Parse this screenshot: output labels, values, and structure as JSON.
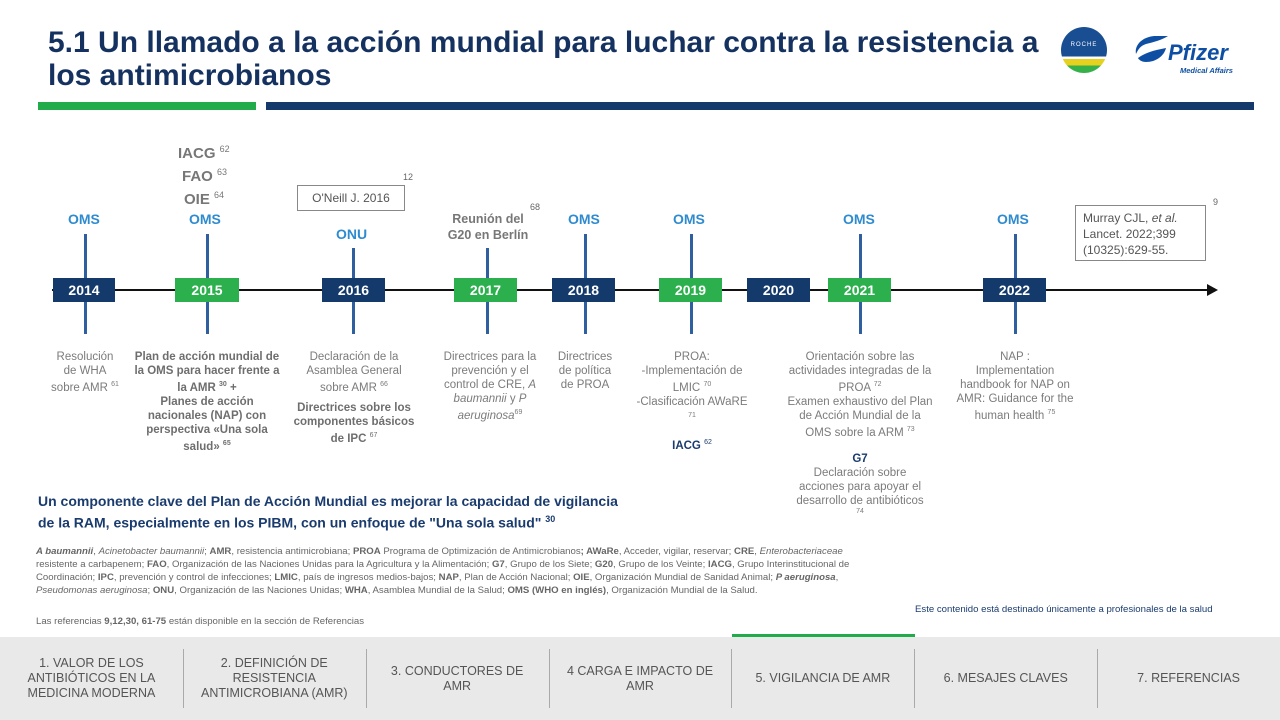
{
  "title": {
    "line1": "5.1 Un llamado a la acción mundial para luchar contra la resistencia a",
    "line2": "los antimicrobianos"
  },
  "logos": {
    "partner_text": "ROCHE",
    "pfizer_brand": "Pfizer",
    "pfizer_sub": "Medical Affairs"
  },
  "colors": {
    "navy": "#143a6c",
    "green": "#2bb04d",
    "title": "#14315f",
    "org_blue": "#2e8bd0"
  },
  "timeline": {
    "years": {
      "y2014": "2014",
      "y2015": "2015",
      "y2016": "2016",
      "y2017": "2017",
      "y2018": "2018",
      "y2019": "2019",
      "y2020": "2020",
      "y2021": "2021",
      "y2022": "2022"
    },
    "above": {
      "oms": "OMS",
      "onu": "ONU",
      "iacg": "IACG",
      "iacg_ref": "62",
      "fao": "FAO",
      "fao_ref": "63",
      "oie": "OIE",
      "oie_ref": "64",
      "oneill": "O'Neill J. 2016",
      "oneill_ref": "12",
      "g20_line1": "Reunión del",
      "g20_line2": "G20 en Berlín",
      "g20_ref": "68",
      "murray_author": "Murray CJL,",
      "murray_etal": "et al.",
      "murray_line2": "Lancet. 2022;399",
      "murray_line3": "(10325):629-55.",
      "murray_ref": "9"
    },
    "below": {
      "d2014": {
        "l1": "Resolución",
        "l2": "de WHA",
        "l3": "sobre AMR",
        "ref": "61"
      },
      "d2015": {
        "l1": "Plan de acción mundial de",
        "l2": "la OMS para hacer frente a",
        "l3": "la AMR",
        "ref1": "30",
        "l3b": "+",
        "l4": "Planes de acción",
        "l5": "nacionales (NAP) con",
        "l6": "perspectiva «Una sola",
        "l7": "salud»",
        "ref2": "65"
      },
      "d2016": {
        "l1": "Declaración de la",
        "l2": "Asamblea General",
        "l3": "sobre AMR",
        "ref1": "66",
        "l4": "Directrices sobre los",
        "l5": "componentes básicos",
        "l6": "de IPC",
        "ref2": "67"
      },
      "d2017": {
        "l1": "Directrices para la",
        "l2": "prevención y el",
        "l3": "control de  CRE,",
        "l3i": "A",
        "l4": "baumannii",
        "l4b": "y",
        "l4c": "P",
        "l5": "aeruginosa",
        "ref": "69"
      },
      "d2018": {
        "l1": "Directrices",
        "l2": "de política",
        "l3": "de PROA"
      },
      "d2019": {
        "l1": "PROA:",
        "l2": "-Implementación de",
        "l3": "LMIC",
        "ref1": "70",
        "l4": "-Clasificación AWaRE",
        "ref2": "71",
        "iacg": "IACG",
        "iacg_ref": "62"
      },
      "d2021": {
        "l1": "Orientación sobre las",
        "l2": "actividades integradas de la",
        "l3": "PROA",
        "ref1": "72",
        "l4": "Examen exhaustivo del Plan",
        "l5": "de Acción Mundial de la",
        "l6": "OMS  sobre la ARM",
        "ref2": "73",
        "g7": "G7",
        "l7": "Declaración sobre",
        "l8": "acciones para apoyar el",
        "l9": "desarrollo de antibióticos",
        "ref3": "74"
      },
      "d2022": {
        "l1": "NAP :",
        "l2": "Implementation",
        "l3": "handbook for NAP on",
        "l4": "AMR:  Guidance for the",
        "l5": "human health",
        "ref": "75"
      }
    }
  },
  "key_message": {
    "line1": "Un componente clave del Plan de Acción Mundial es mejorar la capacidad de vigilancia",
    "line2": "de la RAM, especialmente en los PIBM, con un enfoque de \"Una sola salud\"",
    "ref": "30"
  },
  "abbreviations": {
    "t1b": "A baumannii",
    "t1": ", ",
    "t2i": "Acinetobacter baumannii",
    "t3": "; ",
    "t4b": "AMR",
    "t5": ", resistencia antimicrobiana; ",
    "t6b": "PROA",
    "t7": " Programa de Optimización de Antimicrobianos",
    "t8b": "; AWaRe",
    "t9": ", Acceder, vigilar, reservar; ",
    "t10b": "CRE",
    "t11": ", ",
    "t12i": "Enterobacteriaceae",
    "t13": " resistente a carbapenem; ",
    "t14b": "FAO",
    "t15": ", Organización de las Naciones Unidas para la Agricultura y la Alimentación; ",
    "t16b": "G7",
    "t17": ", Grupo de los Siete; ",
    "t18b": "G20",
    "t19": ", Grupo de los Veinte; ",
    "t20b": "IACG",
    "t21": ", Grupo Interinstitucional de Coordinación;  ",
    "t22b": "IPC",
    "t23": ", prevención y control de infecciones; ",
    "t24b": "LMIC",
    "t25": ", país de ingresos medios-bajos; ",
    "t26b": "NAP",
    "t27": ",  Plan  de  Acción Nacional; ",
    "t28b": "OIE",
    "t29": ",  Organización  Mundial de Sanidad Animal; ",
    "t30b": "P aeruginosa",
    "t31": ", ",
    "t32i": "Pseudomonas aeruginosa",
    "t33": "; ",
    "t34b": "ONU",
    "t35": ", Organización de las Naciones Unidas; ",
    "t36b": "WHA",
    "t37": ", Asamblea Mundial de la Salud; ",
    "t38b": "OMS (WHO en inglés)",
    "t39": ", Organización Mundial de la Salud."
  },
  "references": {
    "prefix": "Las referencias ",
    "nums": "9,12,30, 61-75",
    "suffix": " están disponible en la  sección de Referencias"
  },
  "audience_note": "Este contenido está destinado únicamente a profesionales de la salud",
  "nav": {
    "items": [
      {
        "label": "1. VALOR DE LOS ANTIBIÓTICOS  EN LA MEDICINA MODERNA"
      },
      {
        "label": "2. DEFINICIÓN  DE RESISTENCIA ANTIMICROBIANA  (AMR)"
      },
      {
        "label": "3. CONDUCTORES  DE AMR"
      },
      {
        "label": "4 CARGA  E IMPACTO DE AMR"
      },
      {
        "label": "5. VIGILANCIA  DE AMR"
      },
      {
        "label": "6. MESAJES CLAVES"
      },
      {
        "label": "7. REFERENCIAS"
      }
    ],
    "active_index": 4
  }
}
